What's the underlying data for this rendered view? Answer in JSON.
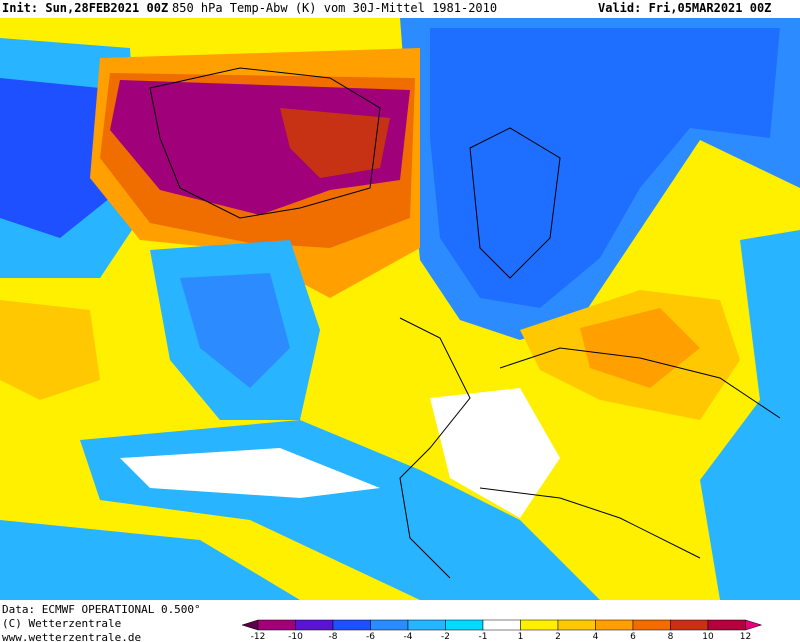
{
  "header": {
    "init": "Init: Sun,28FEB2021 00Z",
    "title": "850 hPa Temp-Abw (K) vom 30J-Mittel 1981-2010",
    "valid": "Valid: Fri,05MAR2021 00Z"
  },
  "footer": {
    "data": "Data: ECMWF OPERATIONAL 0.500°",
    "copyright": "(C) Wetterzentrale",
    "url": "www.wetterzentrale.de"
  },
  "legend": {
    "ticks": [
      "-12",
      "-10",
      "-8",
      "-6",
      "-4",
      "-2",
      "-1",
      "1",
      "2",
      "4",
      "6",
      "8",
      "10",
      "12"
    ],
    "colors": [
      "#5a0046",
      "#a0007a",
      "#5a14d2",
      "#1e50ff",
      "#2c8cff",
      "#28b4ff",
      "#00dcff",
      "#ffffff",
      "#fff000",
      "#ffc800",
      "#ffa000",
      "#f06e00",
      "#c83214",
      "#b4003c",
      "#e6007e"
    ]
  }
}
